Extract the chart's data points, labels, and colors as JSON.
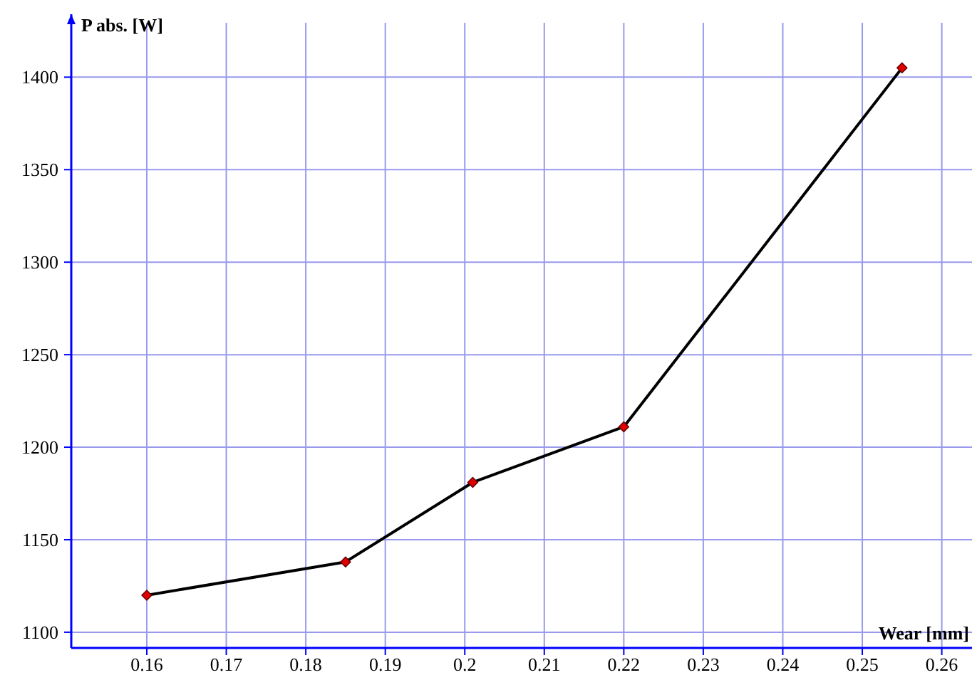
{
  "chart_data": {
    "type": "line",
    "xlabel": "Wear [mm]",
    "ylabel": "P abs. [W]",
    "x": [
      0.16,
      0.185,
      0.201,
      0.22,
      0.255
    ],
    "series": [
      {
        "color": "#000000",
        "values": [
          1120,
          1138,
          1181,
          1211,
          1405
        ]
      }
    ],
    "xlim": [
      0.1505,
      0.2638
    ],
    "ylim": [
      1091.5,
      1434
    ],
    "xticks": [
      0.16,
      0.17,
      0.18,
      0.19,
      0.2,
      0.21,
      0.22,
      0.23,
      0.24,
      0.25,
      0.26
    ],
    "yticks": [
      1100,
      1150,
      1200,
      1250,
      1300,
      1350,
      1400
    ],
    "grid": true,
    "marker": "diamond",
    "line_style": "solid"
  }
}
